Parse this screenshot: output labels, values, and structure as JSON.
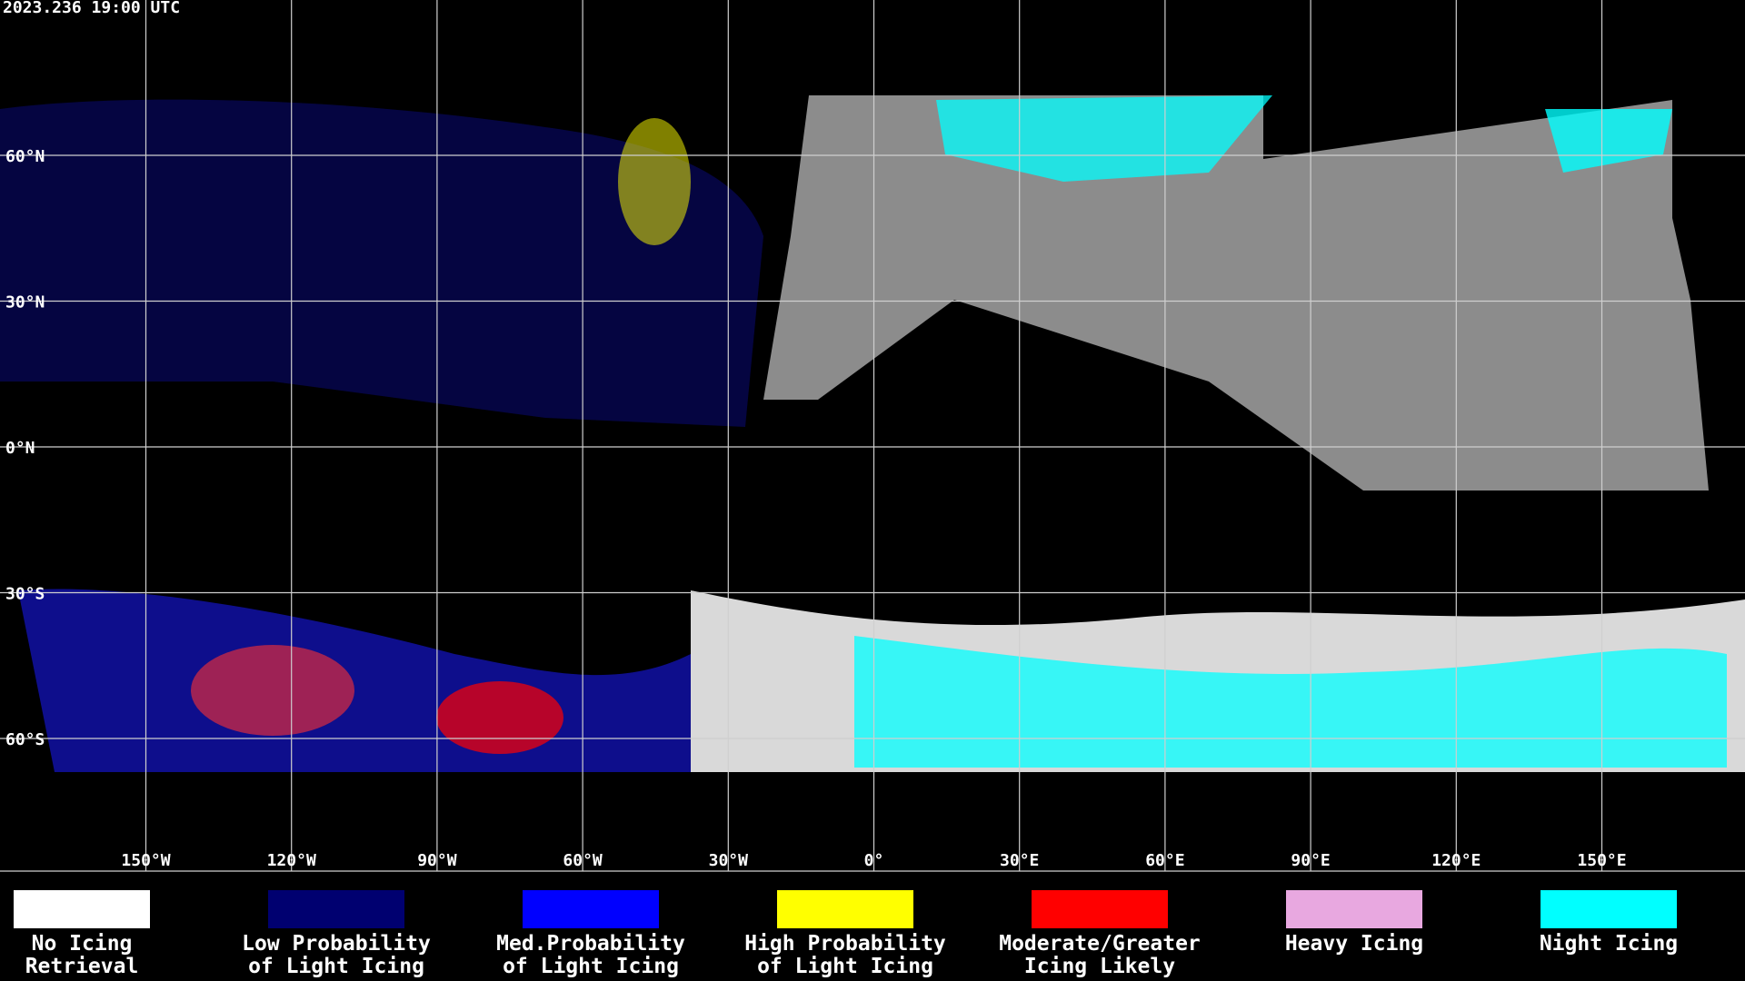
{
  "header": {
    "timestamp": "2023.236 19:00 UTC"
  },
  "map": {
    "lat_labels": [
      "60°N",
      "30°N",
      "0°N",
      "30°S",
      "60°S"
    ],
    "lon_labels": [
      "150°W",
      "120°W",
      "90°W",
      "60°W",
      "30°W",
      "0°",
      "30°E",
      "60°E",
      "90°E",
      "120°E",
      "150°E"
    ]
  },
  "legend": {
    "items": [
      {
        "lines": [
          "No Icing",
          "Retrieval"
        ],
        "color": "#ffffff"
      },
      {
        "lines": [
          "Low Probability",
          "of Light Icing"
        ],
        "color": "#000070"
      },
      {
        "lines": [
          "Med.Probability",
          "of Light Icing"
        ],
        "color": "#0000ff"
      },
      {
        "lines": [
          "High Probability",
          "of Light Icing"
        ],
        "color": "#ffff00"
      },
      {
        "lines": [
          "Moderate/Greater",
          "Icing Likely"
        ],
        "color": "#ff0000"
      },
      {
        "lines": [
          "Heavy Icing"
        ],
        "color": "#e8a8e0"
      },
      {
        "lines": [
          "Night Icing"
        ],
        "color": "#00ffff"
      }
    ]
  }
}
